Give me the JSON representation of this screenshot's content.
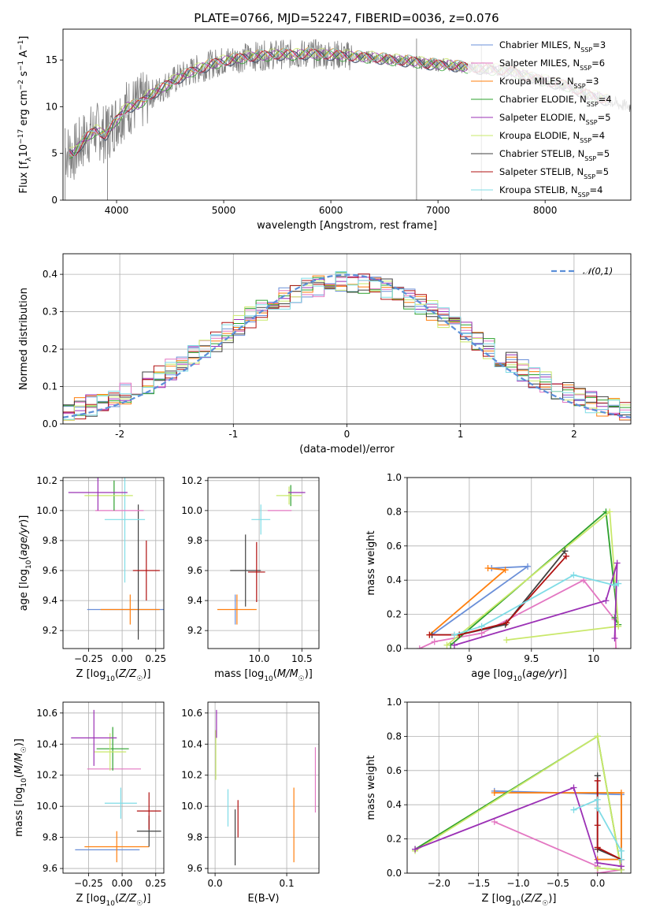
{
  "figure": {
    "title": "PLATE=0766, MJD=52247, FIBERID=0036, z=0.076"
  },
  "colors": {
    "Chabrier MILES": "#6a8fd8",
    "Salpeter MILES": "#e377c2",
    "Kroupa MILES": "#ff7f0e",
    "Chabrier ELODIE": "#2ca02c",
    "Salpeter ELODIE": "#9b30b5",
    "Kroupa ELODIE": "#c9e86a",
    "Chabrier STELIB": "#404040",
    "Salpeter STELIB": "#b01010",
    "Kroupa STELIB": "#7fdce6",
    "data": "#808080",
    "gauss": "#5b8fd8"
  },
  "chart_data": [
    {
      "id": "spectrum",
      "type": "line",
      "title": "PLATE=0766, MJD=52247, FIBERID=0036, z=0.076",
      "xlabel": "wavelength [Angstrom, rest frame]",
      "ylabel": "Flux [f_λ 10^-17 erg cm^-2 s^-1 A^-1]",
      "xlim": [
        3500,
        8800
      ],
      "ylim": [
        0,
        18.3
      ],
      "xticks": [
        4000,
        5000,
        6000,
        7000,
        8000
      ],
      "yticks": [
        0,
        5,
        10,
        15
      ],
      "legend_position": "right",
      "legend": [
        {
          "name": "Chabrier MILES, N_SSP=3",
          "base": "Chabrier MILES, N",
          "sub": "SSP",
          "tail": "=3"
        },
        {
          "name": "Salpeter MILES, N_SSP=6",
          "base": "Salpeter MILES, N",
          "sub": "SSP",
          "tail": "=6"
        },
        {
          "name": "Kroupa MILES, N_SSP=3",
          "base": "Kroupa MILES, N",
          "sub": "SSP",
          "tail": "=3"
        },
        {
          "name": "Chabrier ELODIE, N_SSP=4",
          "base": "Chabrier ELODIE, N",
          "sub": "SSP",
          "tail": "=4"
        },
        {
          "name": "Salpeter ELODIE, N_SSP=5",
          "base": "Salpeter ELODIE, N",
          "sub": "SSP",
          "tail": "=5"
        },
        {
          "name": "Kroupa ELODIE, N_SSP=4",
          "base": "Kroupa ELODIE, N",
          "sub": "SSP",
          "tail": "=4"
        },
        {
          "name": "Chabrier STELIB, N_SSP=5",
          "base": "Chabrier STELIB, N",
          "sub": "SSP",
          "tail": "=5"
        },
        {
          "name": "Salpeter STELIB, N_SSP=5",
          "base": "Salpeter STELIB, N",
          "sub": "SSP",
          "tail": "=5"
        },
        {
          "name": "Kroupa STELIB, N_SSP=4",
          "base": "Kroupa STELIB, N",
          "sub": "SSP",
          "tail": "=4"
        }
      ],
      "continuum": {
        "x": [
          3520,
          3600,
          3700,
          3800,
          3900,
          4000,
          4100,
          4200,
          4300,
          4400,
          4500,
          4600,
          4700,
          4800,
          4900,
          5000,
          5100,
          5200,
          5300,
          5400,
          5500,
          5600,
          5700,
          5800,
          5900,
          6000,
          6100,
          6200,
          6300,
          6400,
          6500,
          6600,
          6700,
          6800,
          6900,
          7000,
          7100,
          7200,
          7300,
          7400,
          7500,
          7600,
          7700,
          7800,
          7900,
          8000,
          8100,
          8200,
          8300,
          8400,
          8500,
          8600,
          8700,
          8800
        ],
        "y": [
          5.2,
          5.0,
          6.5,
          7.5,
          7.0,
          8.6,
          10.0,
          10.2,
          11.2,
          11.8,
          12.6,
          13.2,
          13.8,
          14.2,
          14.6,
          14.9,
          15.1,
          15.3,
          15.4,
          15.5,
          15.6,
          15.6,
          15.6,
          15.7,
          15.6,
          15.6,
          15.5,
          15.4,
          15.3,
          15.3,
          15.1,
          15.0,
          14.9,
          14.8,
          14.6,
          14.5,
          14.5,
          14.3,
          14.2,
          14.1,
          14.0,
          13.9,
          13.8,
          13.4,
          13.0,
          12.8,
          12.5,
          12.3,
          11.8,
          11.3,
          11.0,
          10.6,
          10.2,
          10.0
        ]
      },
      "data_dips": [
        {
          "x": 3520,
          "y": 0.0
        },
        {
          "x": 3915,
          "y": 0.0
        },
        {
          "x": 6800,
          "y": 0.0
        },
        {
          "x": 7405,
          "y": 0.0
        }
      ]
    },
    {
      "id": "residuals",
      "type": "histogram",
      "xlabel": "(data-model)/error",
      "ylabel": "Normed distribution",
      "xlim": [
        -2.5,
        2.5
      ],
      "ylim": [
        0,
        0.455
      ],
      "xticks": [
        -2,
        -1,
        0,
        1,
        2
      ],
      "yticks": [
        0.0,
        0.1,
        0.2,
        0.3,
        0.4
      ],
      "grid": true,
      "legend_position": "top-right",
      "legend": [
        "𝒩(0,1)"
      ],
      "bin_width": 0.1,
      "gaussian": {
        "mu": 0,
        "sigma": 1
      }
    },
    {
      "id": "age_vs_Z",
      "type": "errorbar",
      "xlabel": "Z [log10(Z/Z☉)]",
      "ylabel": "age [log10(age/yr)]",
      "xlim": [
        -0.44,
        0.31
      ],
      "ylim": [
        9.08,
        10.22
      ],
      "xticks": [
        -0.25,
        0.0,
        0.25
      ],
      "xticklabels": [
        "−0.25",
        "0.00",
        "0.25"
      ],
      "yticks": [
        9.2,
        9.4,
        9.6,
        9.8,
        10.0,
        10.2
      ],
      "grid": true,
      "points": [
        {
          "series": "Chabrier MILES",
          "x": 0.04,
          "y": 9.34,
          "xerr": 0.3,
          "yerr": 0.0
        },
        {
          "series": "Kroupa MILES",
          "x": 0.06,
          "y": 9.34,
          "xerr": 0.22,
          "yerr": 0.1
        },
        {
          "series": "Chabrier STELIB",
          "x": 0.12,
          "y": 9.59,
          "xerr": 0.0,
          "yerr": 0.45
        },
        {
          "series": "Salpeter STELIB",
          "x": 0.18,
          "y": 9.6,
          "xerr": 0.1,
          "yerr": 0.2
        },
        {
          "series": "Kroupa STELIB",
          "x": 0.02,
          "y": 9.94,
          "xerr": 0.15,
          "yerr": 0.42
        },
        {
          "series": "Salpeter MILES",
          "x": -0.02,
          "y": 10.0,
          "xerr": 0.18,
          "yerr": 0.0
        },
        {
          "series": "Chabrier ELODIE",
          "x": -0.06,
          "y": 10.1,
          "xerr": 0.0,
          "yerr": 0.1
        },
        {
          "series": "Kroupa ELODIE",
          "x": -0.1,
          "y": 10.1,
          "xerr": 0.18,
          "yerr": 0.0
        },
        {
          "series": "Salpeter ELODIE",
          "x": -0.18,
          "y": 10.12,
          "xerr": 0.22,
          "yerr": 0.12
        }
      ]
    },
    {
      "id": "age_vs_mass",
      "type": "errorbar",
      "xlabel": "mass [log10(M/M☉)]",
      "ylabel": "",
      "xlim": [
        9.4,
        10.7
      ],
      "ylim": [
        9.08,
        10.22
      ],
      "xticks": [
        10.0,
        10.5
      ],
      "xticklabels": [
        "10.0",
        "10.5"
      ],
      "yticks": [
        9.2,
        9.4,
        9.6,
        9.8,
        10.0,
        10.2
      ],
      "grid": true,
      "points": [
        {
          "series": "Chabrier MILES",
          "x": 9.72,
          "y": 9.34,
          "xerr": 0.0,
          "yerr": 0.1
        },
        {
          "series": "Kroupa MILES",
          "x": 9.74,
          "y": 9.34,
          "xerr": 0.23,
          "yerr": 0.1
        },
        {
          "series": "Chabrier STELIB",
          "x": 9.84,
          "y": 9.6,
          "xerr": 0.18,
          "yerr": 0.24
        },
        {
          "series": "Salpeter STELIB",
          "x": 9.97,
          "y": 9.59,
          "xerr": 0.1,
          "yerr": 0.2
        },
        {
          "series": "Kroupa STELIB",
          "x": 10.02,
          "y": 9.94,
          "xerr": 0.11,
          "yerr": 0.1
        },
        {
          "series": "Salpeter MILES",
          "x": 10.24,
          "y": 10.0,
          "xerr": 0.14,
          "yerr": 0.0
        },
        {
          "series": "Chabrier ELODIE",
          "x": 10.37,
          "y": 10.1,
          "xerr": 0.0,
          "yerr": 0.07
        },
        {
          "series": "Kroupa ELODIE",
          "x": 10.35,
          "y": 10.1,
          "xerr": 0.15,
          "yerr": 0.06
        },
        {
          "series": "Salpeter ELODIE",
          "x": 10.44,
          "y": 10.12,
          "xerr": 0.1,
          "yerr": 0.0
        }
      ]
    },
    {
      "id": "weight_vs_age",
      "type": "line",
      "xlabel": "age [log10(age/yr)]",
      "ylabel": "mass weight",
      "xlim": [
        8.5,
        10.3
      ],
      "ylim": [
        0.0,
        1.0
      ],
      "xticks": [
        9.0,
        9.5,
        10.0
      ],
      "yticks": [
        0.0,
        0.2,
        0.4,
        0.6,
        0.8,
        1.0
      ],
      "grid": true,
      "series": [
        {
          "name": "Chabrier MILES",
          "x": [
            9.18,
            9.47,
            8.7
          ],
          "y": [
            0.47,
            0.48,
            0.08
          ]
        },
        {
          "name": "Kroupa MILES",
          "x": [
            9.15,
            9.29,
            8.68
          ],
          "y": [
            0.47,
            0.46,
            0.08
          ]
        },
        {
          "name": "Salpeter MILES",
          "x": [
            8.6,
            8.72,
            9.1,
            9.92,
            10.17,
            10.18
          ],
          "y": [
            0.0,
            0.04,
            0.09,
            0.4,
            0.17,
            0.0
          ]
        },
        {
          "name": "Chabrier ELODIE",
          "x": [
            8.85,
            10.1,
            10.2,
            10.17
          ],
          "y": [
            0.02,
            0.8,
            0.14,
            0.18
          ]
        },
        {
          "name": "Kroupa ELODIE",
          "x": [
            8.82,
            10.13,
            10.2,
            9.3
          ],
          "y": [
            0.02,
            0.8,
            0.13,
            0.05
          ]
        },
        {
          "name": "Salpeter ELODIE",
          "x": [
            8.88,
            10.1,
            10.19,
            10.17
          ],
          "y": [
            0.02,
            0.28,
            0.5,
            0.06
          ]
        },
        {
          "name": "Chabrier STELIB",
          "x": [
            8.7,
            8.92,
            9.29,
            9.77
          ],
          "y": [
            0.08,
            0.08,
            0.14,
            0.57
          ]
        },
        {
          "name": "Salpeter STELIB",
          "x": [
            8.68,
            8.92,
            9.3,
            9.78
          ],
          "y": [
            0.08,
            0.08,
            0.15,
            0.54
          ]
        },
        {
          "name": "Kroupa STELIB",
          "x": [
            8.88,
            9.1,
            9.84,
            10.17,
            10.2
          ],
          "y": [
            0.08,
            0.13,
            0.43,
            0.37,
            0.38
          ]
        }
      ]
    },
    {
      "id": "mass_vs_Z",
      "type": "errorbar",
      "xlabel": "Z [log10(Z/Z☉)]",
      "ylabel": "mass [log10(M/M☉)]",
      "xlim": [
        -0.44,
        0.31
      ],
      "ylim": [
        9.57,
        10.67
      ],
      "xticks": [
        -0.25,
        0.0,
        0.25
      ],
      "xticklabels": [
        "−0.25",
        "0.00",
        "0.25"
      ],
      "yticks": [
        9.6,
        9.8,
        10.0,
        10.2,
        10.4,
        10.6
      ],
      "grid": true,
      "points": [
        {
          "series": "Chabrier MILES",
          "x": -0.11,
          "y": 9.72,
          "xerr": 0.24,
          "yerr": 0.0
        },
        {
          "series": "Kroupa MILES",
          "x": -0.04,
          "y": 9.74,
          "xerr": 0.24,
          "yerr": 0.1
        },
        {
          "series": "Chabrier STELIB",
          "x": 0.2,
          "y": 9.84,
          "xerr": 0.09,
          "yerr": 0.1
        },
        {
          "series": "Salpeter STELIB",
          "x": 0.2,
          "y": 9.97,
          "xerr": 0.09,
          "yerr": 0.12
        },
        {
          "series": "Kroupa STELIB",
          "x": -0.01,
          "y": 10.02,
          "xerr": 0.12,
          "yerr": 0.1
        },
        {
          "series": "Salpeter MILES",
          "x": -0.06,
          "y": 10.24,
          "xerr": 0.2,
          "yerr": 0.0
        },
        {
          "series": "Chabrier ELODIE",
          "x": -0.07,
          "y": 10.37,
          "xerr": 0.12,
          "yerr": 0.14
        },
        {
          "series": "Kroupa ELODIE",
          "x": -0.09,
          "y": 10.35,
          "xerr": 0.12,
          "yerr": 0.12
        },
        {
          "series": "Salpeter ELODIE",
          "x": -0.21,
          "y": 10.44,
          "xerr": 0.17,
          "yerr": 0.18
        }
      ]
    },
    {
      "id": "mass_vs_EBV",
      "type": "errorbar",
      "xlabel": "E(B-V)",
      "ylabel": "",
      "xlim": [
        -0.01,
        0.145
      ],
      "ylim": [
        9.57,
        10.67
      ],
      "xticks": [
        0.0,
        0.1
      ],
      "xticklabels": [
        "0.0",
        "0.1"
      ],
      "yticks": [
        9.6,
        9.8,
        10.0,
        10.2,
        10.4,
        10.6
      ],
      "grid": true,
      "points": [
        {
          "series": "Chabrier STELIB",
          "x": 0.028,
          "y": 9.8,
          "xerr": 0.0,
          "yerr": 0.18
        },
        {
          "series": "Salpeter STELIB",
          "x": 0.032,
          "y": 9.92,
          "xerr": 0.0,
          "yerr": 0.12
        },
        {
          "series": "Kroupa STELIB",
          "x": 0.018,
          "y": 9.99,
          "xerr": 0.0,
          "yerr": 0.12
        },
        {
          "series": "Kroupa MILES",
          "x": 0.11,
          "y": 9.88,
          "xerr": 0.0,
          "yerr": 0.24
        },
        {
          "series": "Salpeter MILES",
          "x": 0.14,
          "y": 10.17,
          "xerr": 0.0,
          "yerr": 0.21
        },
        {
          "series": "Kroupa ELODIE",
          "x": 0.001,
          "y": 10.33,
          "xerr": 0.0,
          "yerr": 0.16
        },
        {
          "series": "Salpeter ELODIE",
          "x": 0.002,
          "y": 10.53,
          "xerr": 0.0,
          "yerr": 0.09
        }
      ]
    },
    {
      "id": "weight_vs_Z",
      "type": "line",
      "xlabel": "Z [log10(Z/Z☉)]",
      "ylabel": "mass weight",
      "xlim": [
        -2.4,
        0.42
      ],
      "ylim": [
        0.0,
        1.0
      ],
      "xticks": [
        -2.0,
        -1.5,
        -1.0,
        -0.5,
        0.0
      ],
      "xticklabels": [
        "−2.0",
        "−1.5",
        "−1.0",
        "−0.5",
        "0.0"
      ],
      "yticks": [
        0.0,
        0.2,
        0.4,
        0.6,
        0.8,
        1.0
      ],
      "grid": true,
      "series": [
        {
          "name": "Chabrier MILES",
          "x": [
            -1.3,
            0.3,
            0.3,
            0.0
          ],
          "y": [
            0.48,
            0.46,
            0.08,
            0.08
          ]
        },
        {
          "name": "Kroupa MILES",
          "x": [
            -1.3,
            0.3,
            0.3,
            0.0
          ],
          "y": [
            0.47,
            0.47,
            0.08,
            0.08
          ]
        },
        {
          "name": "Salpeter MILES",
          "x": [
            -1.3,
            0.0,
            0.0,
            0.3
          ],
          "y": [
            0.3,
            0.04,
            0.0,
            0.02
          ]
        },
        {
          "name": "Chabrier ELODIE",
          "x": [
            -2.3,
            0.0,
            0.3,
            0.0
          ],
          "y": [
            0.14,
            0.8,
            0.02,
            0.03
          ]
        },
        {
          "name": "Kroupa ELODIE",
          "x": [
            -2.3,
            0.0,
            0.3,
            0.0
          ],
          "y": [
            0.13,
            0.8,
            0.02,
            0.03
          ]
        },
        {
          "name": "Salpeter ELODIE",
          "x": [
            -2.3,
            -0.3,
            0.0,
            0.3
          ],
          "y": [
            0.14,
            0.5,
            0.06,
            0.04
          ]
        },
        {
          "name": "Chabrier STELIB",
          "x": [
            0.0,
            0.0,
            0.0,
            0.3
          ],
          "y": [
            0.57,
            0.14,
            0.14,
            0.08
          ]
        },
        {
          "name": "Salpeter STELIB",
          "x": [
            0.0,
            0.0,
            0.0,
            0.3
          ],
          "y": [
            0.54,
            0.28,
            0.15,
            0.08
          ]
        },
        {
          "name": "Kroupa STELIB",
          "x": [
            -0.3,
            0.0,
            0.0,
            0.3,
            0.3
          ],
          "y": [
            0.37,
            0.43,
            0.38,
            0.13,
            0.08
          ]
        }
      ]
    }
  ]
}
